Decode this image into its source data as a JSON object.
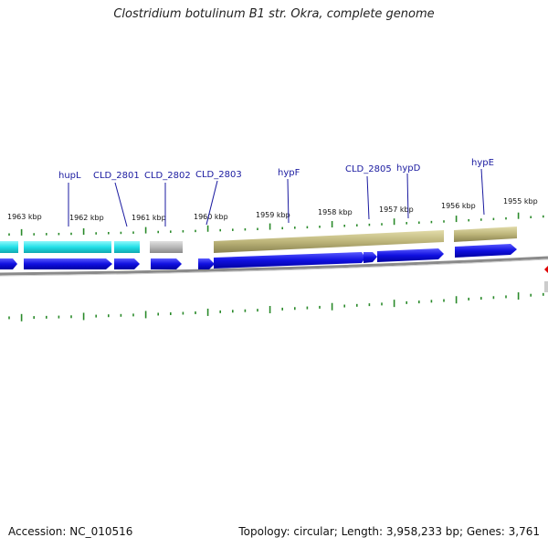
{
  "title": "Clostridium botulinum B1 str. Okra, complete genome",
  "footer": {
    "accession": "Accession: NC_010516",
    "summary": "Topology: circular; Length: 3,958,233 bp; Genes: 3,761"
  },
  "kbp_labels": [
    "1963 kbp",
    "1962 kbp",
    "1961 kbp",
    "1960 kbp",
    "1959 kbp",
    "1958 kbp",
    "1957 kbp",
    "1956 kbp",
    "1955 kbp"
  ],
  "gene_labels": [
    "hupL",
    "CLD_2801",
    "CLD_2802",
    "CLD_2803",
    "hypF",
    "CLD_2805",
    "hypD",
    "hypE"
  ],
  "colors": {
    "cyan": "#22e0e8",
    "gray_feature": "#b8b8b8",
    "khaki": "#bdb57a",
    "blue": "#1010e0",
    "tick_green": "#2a8a2a",
    "label_line": "#1a1aa0",
    "marker_red": "#e00000"
  }
}
